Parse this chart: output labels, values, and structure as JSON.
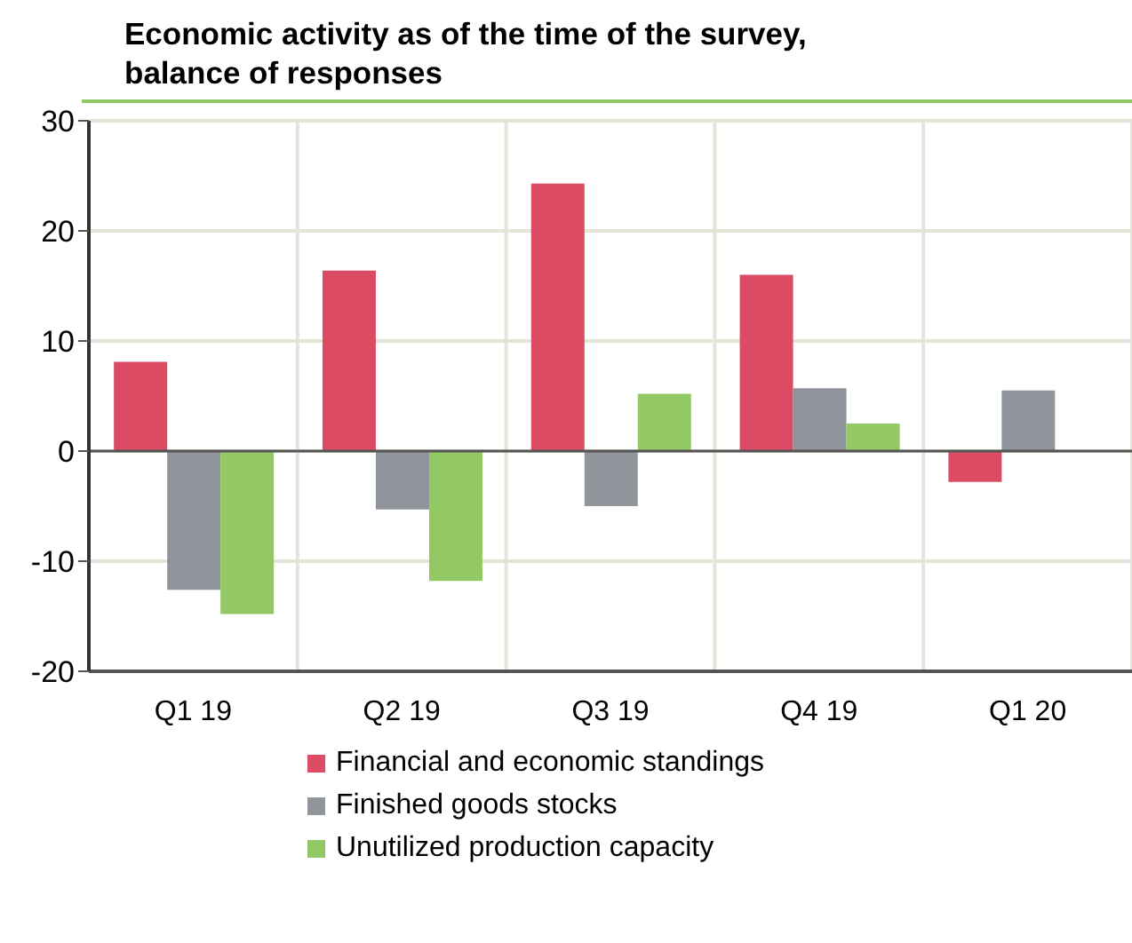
{
  "chart_data": {
    "type": "bar",
    "title": "Economic activity as of the time of the survey,\nbalance of responses",
    "categories": [
      "Q1 19",
      "Q2 19",
      "Q3 19",
      "Q4 19",
      "Q1 20"
    ],
    "series": [
      {
        "name": "Financial and economic standings",
        "color": "#db4b63",
        "values": [
          8.1,
          16.4,
          24.3,
          16.0,
          -2.8
        ]
      },
      {
        "name": "Finished goods stocks",
        "color": "#8f959a",
        "values": [
          -12.6,
          -5.3,
          -5.0,
          5.7,
          5.5
        ]
      },
      {
        "name": "Unutilized production capacity",
        "color": "#92c965",
        "values": [
          -14.8,
          -11.8,
          5.2,
          2.5,
          null
        ]
      }
    ],
    "ylim": [
      -20,
      30
    ],
    "yticks": [
      -20,
      -10,
      0,
      10,
      20,
      30
    ],
    "grid": true,
    "legend": "bottom"
  }
}
